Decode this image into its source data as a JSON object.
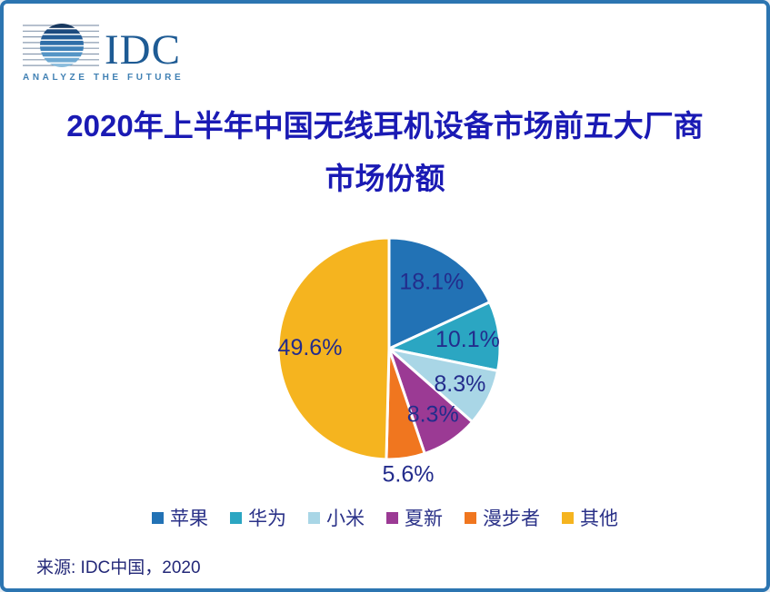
{
  "page": {
    "border_color": "#2c75b1",
    "background": "#ffffff"
  },
  "logo": {
    "name": "IDC",
    "tagline": "ANALYZE THE FUTURE",
    "word_color": "#1e5b94",
    "tagline_color": "#4181b4",
    "globe_stripe_colors": [
      "#17375e",
      "#1c4a7e",
      "#245c96",
      "#2f6ea8",
      "#3f81b8",
      "#5595c6",
      "#6fa9d2",
      "#8abcdc"
    ],
    "line_color": "#8a9bb0"
  },
  "title": {
    "line1": "2020年上半年中国无线耳机设备市场前五大厂商",
    "line2": "市场份额",
    "color": "#1a1ab4"
  },
  "chart_data": {
    "type": "pie",
    "title": "2020年上半年中国无线耳机设备市场前五大厂商市场份额",
    "start_angle_deg": 0,
    "direction": "clockwise",
    "slice_border_color": "#ffffff",
    "label_color": "#232c8c",
    "legend_position": "bottom",
    "slices": [
      {
        "name": "苹果",
        "value": 18.1,
        "label": "18.1%",
        "color": "#2272b5",
        "label_position": "inside"
      },
      {
        "name": "华为",
        "value": 10.1,
        "label": "10.1%",
        "color": "#2ba6c2",
        "label_position": "inside"
      },
      {
        "name": "小米",
        "value": 8.3,
        "label": "8.3%",
        "color": "#a9d6e6",
        "label_position": "inside"
      },
      {
        "name": "夏新",
        "value": 8.3,
        "label": "8.3%",
        "color": "#9b3a94",
        "label_position": "inside"
      },
      {
        "name": "漫步者",
        "value": 5.6,
        "label": "5.6%",
        "color": "#f0761f",
        "label_position": "outside"
      },
      {
        "name": "其他",
        "value": 49.6,
        "label": "49.6%",
        "color": "#f5b41f",
        "label_position": "inside"
      }
    ]
  },
  "legend": {
    "text_color": "#2a3188"
  },
  "source": {
    "text": "来源: IDC中国，2020",
    "color": "#232878"
  }
}
